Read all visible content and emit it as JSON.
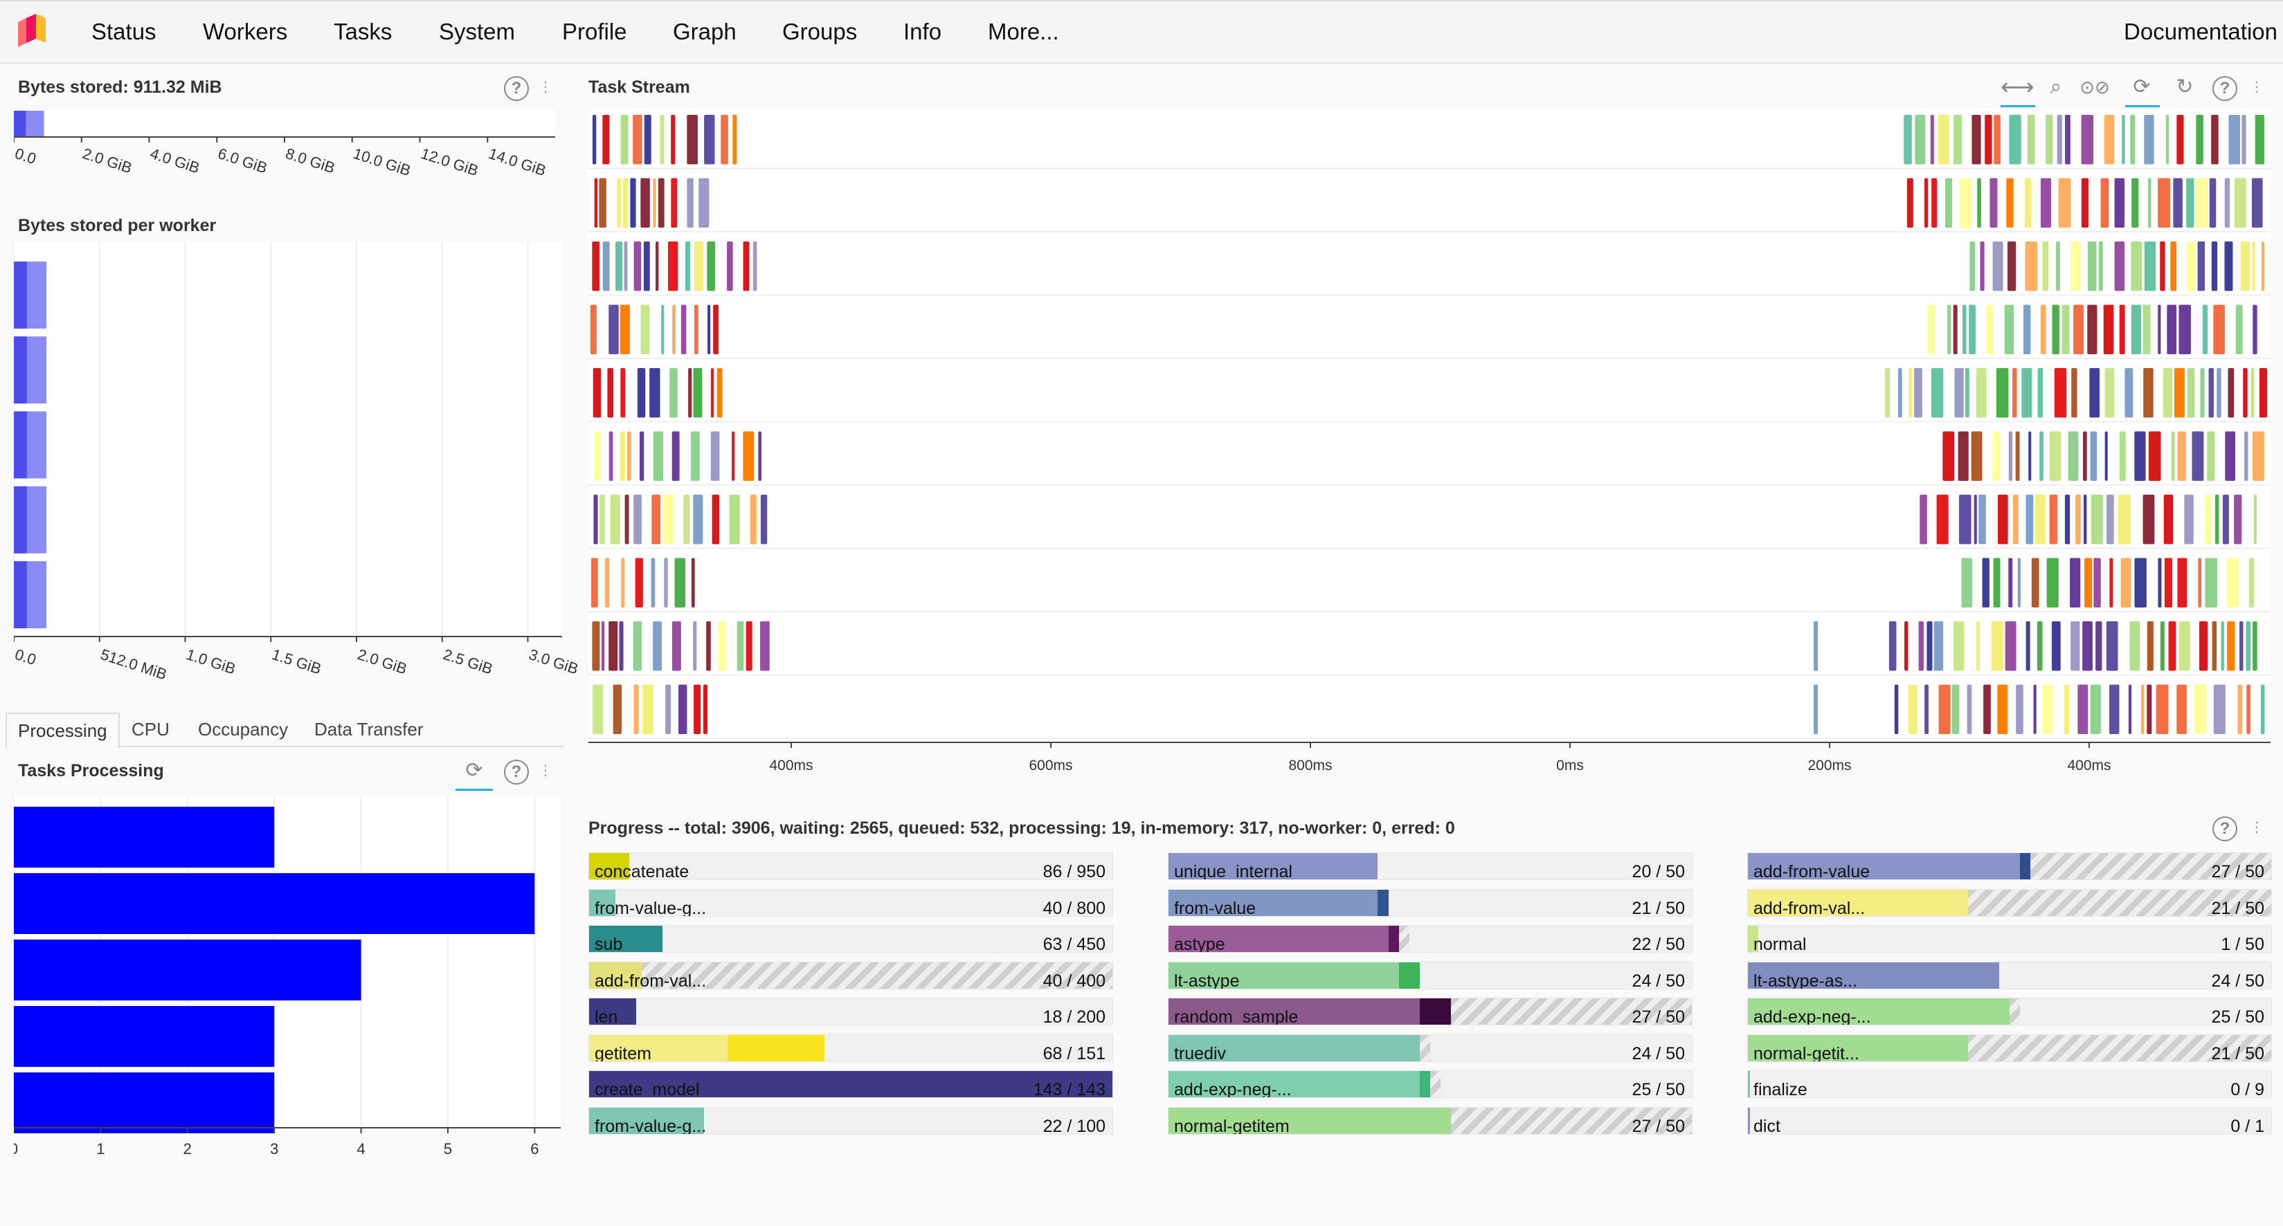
{
  "nav": {
    "items": [
      "Status",
      "Workers",
      "Tasks",
      "System",
      "Profile",
      "Graph",
      "Groups",
      "Info",
      "More..."
    ],
    "documentation": "Documentation"
  },
  "bytes_stored": {
    "title": "Bytes stored: 911.32 MiB",
    "ticks": [
      "0.0",
      "2.0 GiB",
      "4.0 GiB",
      "6.0 GiB",
      "8.0 GiB",
      "10.0 GiB",
      "12.0 GiB",
      "14.0 GiB"
    ],
    "value_gib": 0.89,
    "color": "#8b8bf6"
  },
  "bytes_per_worker": {
    "title": "Bytes stored per worker",
    "ticks": [
      "0.0",
      "512.0 MiB",
      "1.0 GiB",
      "1.5 GiB",
      "2.0 GiB",
      "2.5 GiB",
      "3.0 GiB"
    ],
    "max_gib": 3.2,
    "workers_gib": [
      0.19,
      0.19,
      0.19,
      0.19,
      0.19
    ],
    "color": "#8b8bf6"
  },
  "tabs": [
    "Processing",
    "CPU",
    "Occupancy",
    "Data Transfer"
  ],
  "tasks_processing": {
    "title": "Tasks Processing",
    "ticks": [
      "0",
      "1",
      "2",
      "3",
      "4",
      "5",
      "6"
    ],
    "values": [
      3,
      6,
      4,
      3,
      3
    ],
    "color": "#0000ff"
  },
  "task_stream": {
    "title": "Task Stream",
    "ticks": [
      "400ms",
      "600ms",
      "800ms",
      "0ms",
      "200ms",
      "400ms"
    ],
    "rows": 10,
    "palette": [
      "#e41a1c",
      "#d7191c",
      "#8b2c3a",
      "#5e4fa2",
      "#3f3f9a",
      "#7fa0c8",
      "#66c2a5",
      "#8fd18f",
      "#b2df8a",
      "#f3ef7a",
      "#ffff99",
      "#c9e68a",
      "#fdae61",
      "#f46d43",
      "#9e9ac8",
      "#6a3d9a",
      "#b15928",
      "#4daf4a",
      "#984ea3",
      "#ff7f00"
    ]
  },
  "progress": {
    "title": "Progress -- total: 3906, waiting: 2565, queued: 532, processing: 19, in-memory: 317, no-worker: 0, erred: 0",
    "columns": [
      [
        {
          "name": "concatenate",
          "count": "86 / 950",
          "total": 950,
          "done": 86,
          "mem": 19,
          "proc": 0,
          "wait": 0,
          "color": "#e5e06a",
          "memcolor": "#d4d400"
        },
        {
          "name": "from-value-g...",
          "count": "40 / 800",
          "total": 800,
          "done": 40,
          "mem": 40,
          "proc": 0,
          "wait": 0,
          "color": "#7ec5b3",
          "memcolor": "#7ec5b3"
        },
        {
          "name": "sub",
          "count": "63 / 450",
          "total": 450,
          "done": 63,
          "mem": 63,
          "proc": 0,
          "wait": 0,
          "color": "#2a8c8c",
          "memcolor": "#2a8c8c"
        },
        {
          "name": "add-from-val...",
          "count": "40 / 400",
          "total": 400,
          "done": 40,
          "mem": 40,
          "proc": 0,
          "wait": 360,
          "color": "#e5e17a",
          "memcolor": "#e5e17a"
        },
        {
          "name": "len",
          "count": "18 / 200",
          "total": 200,
          "done": 18,
          "mem": 18,
          "proc": 0,
          "wait": 0,
          "color": "#3b3a82",
          "memcolor": "#3b3a82"
        },
        {
          "name": "getitem",
          "count": "68 / 151",
          "total": 151,
          "done": 68,
          "mem": 40,
          "proc": 28,
          "wait": 0,
          "color": "#f4ec84",
          "memcolor": "#f8e320"
        },
        {
          "name": "create_model",
          "count": "143 / 143",
          "total": 143,
          "done": 143,
          "mem": 143,
          "proc": 0,
          "wait": 0,
          "color": "#403a86",
          "memcolor": "#403a86"
        },
        {
          "name": "from-value-g...",
          "count": "22 / 100",
          "total": 100,
          "done": 22,
          "mem": 22,
          "proc": 0,
          "wait": 0,
          "color": "#7ec5b3",
          "memcolor": "#7ec5b3"
        }
      ],
      [
        {
          "name": "unique_internal",
          "count": "20 / 50",
          "total": 50,
          "done": 20,
          "mem": 20,
          "proc": 0,
          "wait": 0,
          "color": "#8a94c6",
          "memcolor": "#8a94c6"
        },
        {
          "name": "from-value",
          "count": "21 / 50",
          "total": 50,
          "done": 21,
          "mem": 20,
          "proc": 1,
          "wait": 0,
          "color": "#7f97c2",
          "memcolor": "#2f5490"
        },
        {
          "name": "astype",
          "count": "22 / 50",
          "total": 50,
          "done": 22,
          "mem": 21,
          "proc": 1,
          "wait": 1,
          "color": "#9a5c98",
          "memcolor": "#5c1a5c"
        },
        {
          "name": "lt-astype",
          "count": "24 / 50",
          "total": 50,
          "done": 24,
          "mem": 22,
          "proc": 2,
          "wait": 0,
          "color": "#8ed39a",
          "memcolor": "#3cb55a"
        },
        {
          "name": "random_sample",
          "count": "27 / 50",
          "total": 50,
          "done": 27,
          "mem": 24,
          "proc": 3,
          "wait": 23,
          "color": "#8b5a8b",
          "memcolor": "#3a0a3a"
        },
        {
          "name": "truediv",
          "count": "24 / 50",
          "total": 50,
          "done": 24,
          "mem": 24,
          "proc": 0,
          "wait": 1,
          "color": "#7ec5b3",
          "memcolor": "#7ec5b3"
        },
        {
          "name": "add-exp-neg-...",
          "count": "25 / 50",
          "total": 50,
          "done": 25,
          "mem": 24,
          "proc": 1,
          "wait": 1,
          "color": "#7fcfac",
          "memcolor": "#3cb579"
        },
        {
          "name": "normal-getitem",
          "count": "27 / 50",
          "total": 50,
          "done": 27,
          "mem": 27,
          "proc": 0,
          "wait": 23,
          "color": "#a2dc92",
          "memcolor": "#a2dc92"
        }
      ],
      [
        {
          "name": "add-from-value",
          "count": "27 / 50",
          "total": 50,
          "done": 27,
          "mem": 26,
          "proc": 1,
          "wait": 23,
          "color": "#8a94c6",
          "memcolor": "#304c90"
        },
        {
          "name": "add-from-val...",
          "count": "21 / 50",
          "total": 50,
          "done": 21,
          "mem": 21,
          "proc": 0,
          "wait": 29,
          "color": "#f4ec84",
          "memcolor": "#f4ec84"
        },
        {
          "name": "normal",
          "count": "1 / 50",
          "total": 50,
          "done": 1,
          "mem": 1,
          "proc": 0,
          "wait": 0,
          "color": "#c6e68a",
          "memcolor": "#c6e68a"
        },
        {
          "name": "lt-astype-as...",
          "count": "24 / 50",
          "total": 50,
          "done": 24,
          "mem": 24,
          "proc": 0,
          "wait": 0,
          "color": "#7f8dc0",
          "memcolor": "#7f8dc0"
        },
        {
          "name": "add-exp-neg-...",
          "count": "25 / 50",
          "total": 50,
          "done": 25,
          "mem": 25,
          "proc": 0,
          "wait": 1,
          "color": "#a2dc92",
          "memcolor": "#a2dc92"
        },
        {
          "name": "normal-getit...",
          "count": "21 / 50",
          "total": 50,
          "done": 21,
          "mem": 21,
          "proc": 0,
          "wait": 29,
          "color": "#a2dc92",
          "memcolor": "#a2dc92"
        },
        {
          "name": "finalize",
          "count": "0 / 9",
          "total": 9,
          "done": 0,
          "mem": 0,
          "proc": 0,
          "wait": 0,
          "color": "#7ec5b3",
          "memcolor": "#7ec5b3"
        },
        {
          "name": "dict",
          "count": "0 / 1",
          "total": 1,
          "done": 0,
          "mem": 0,
          "proc": 0,
          "wait": 0,
          "color": "#7f97c2",
          "memcolor": "#7f97c2"
        }
      ]
    ]
  }
}
